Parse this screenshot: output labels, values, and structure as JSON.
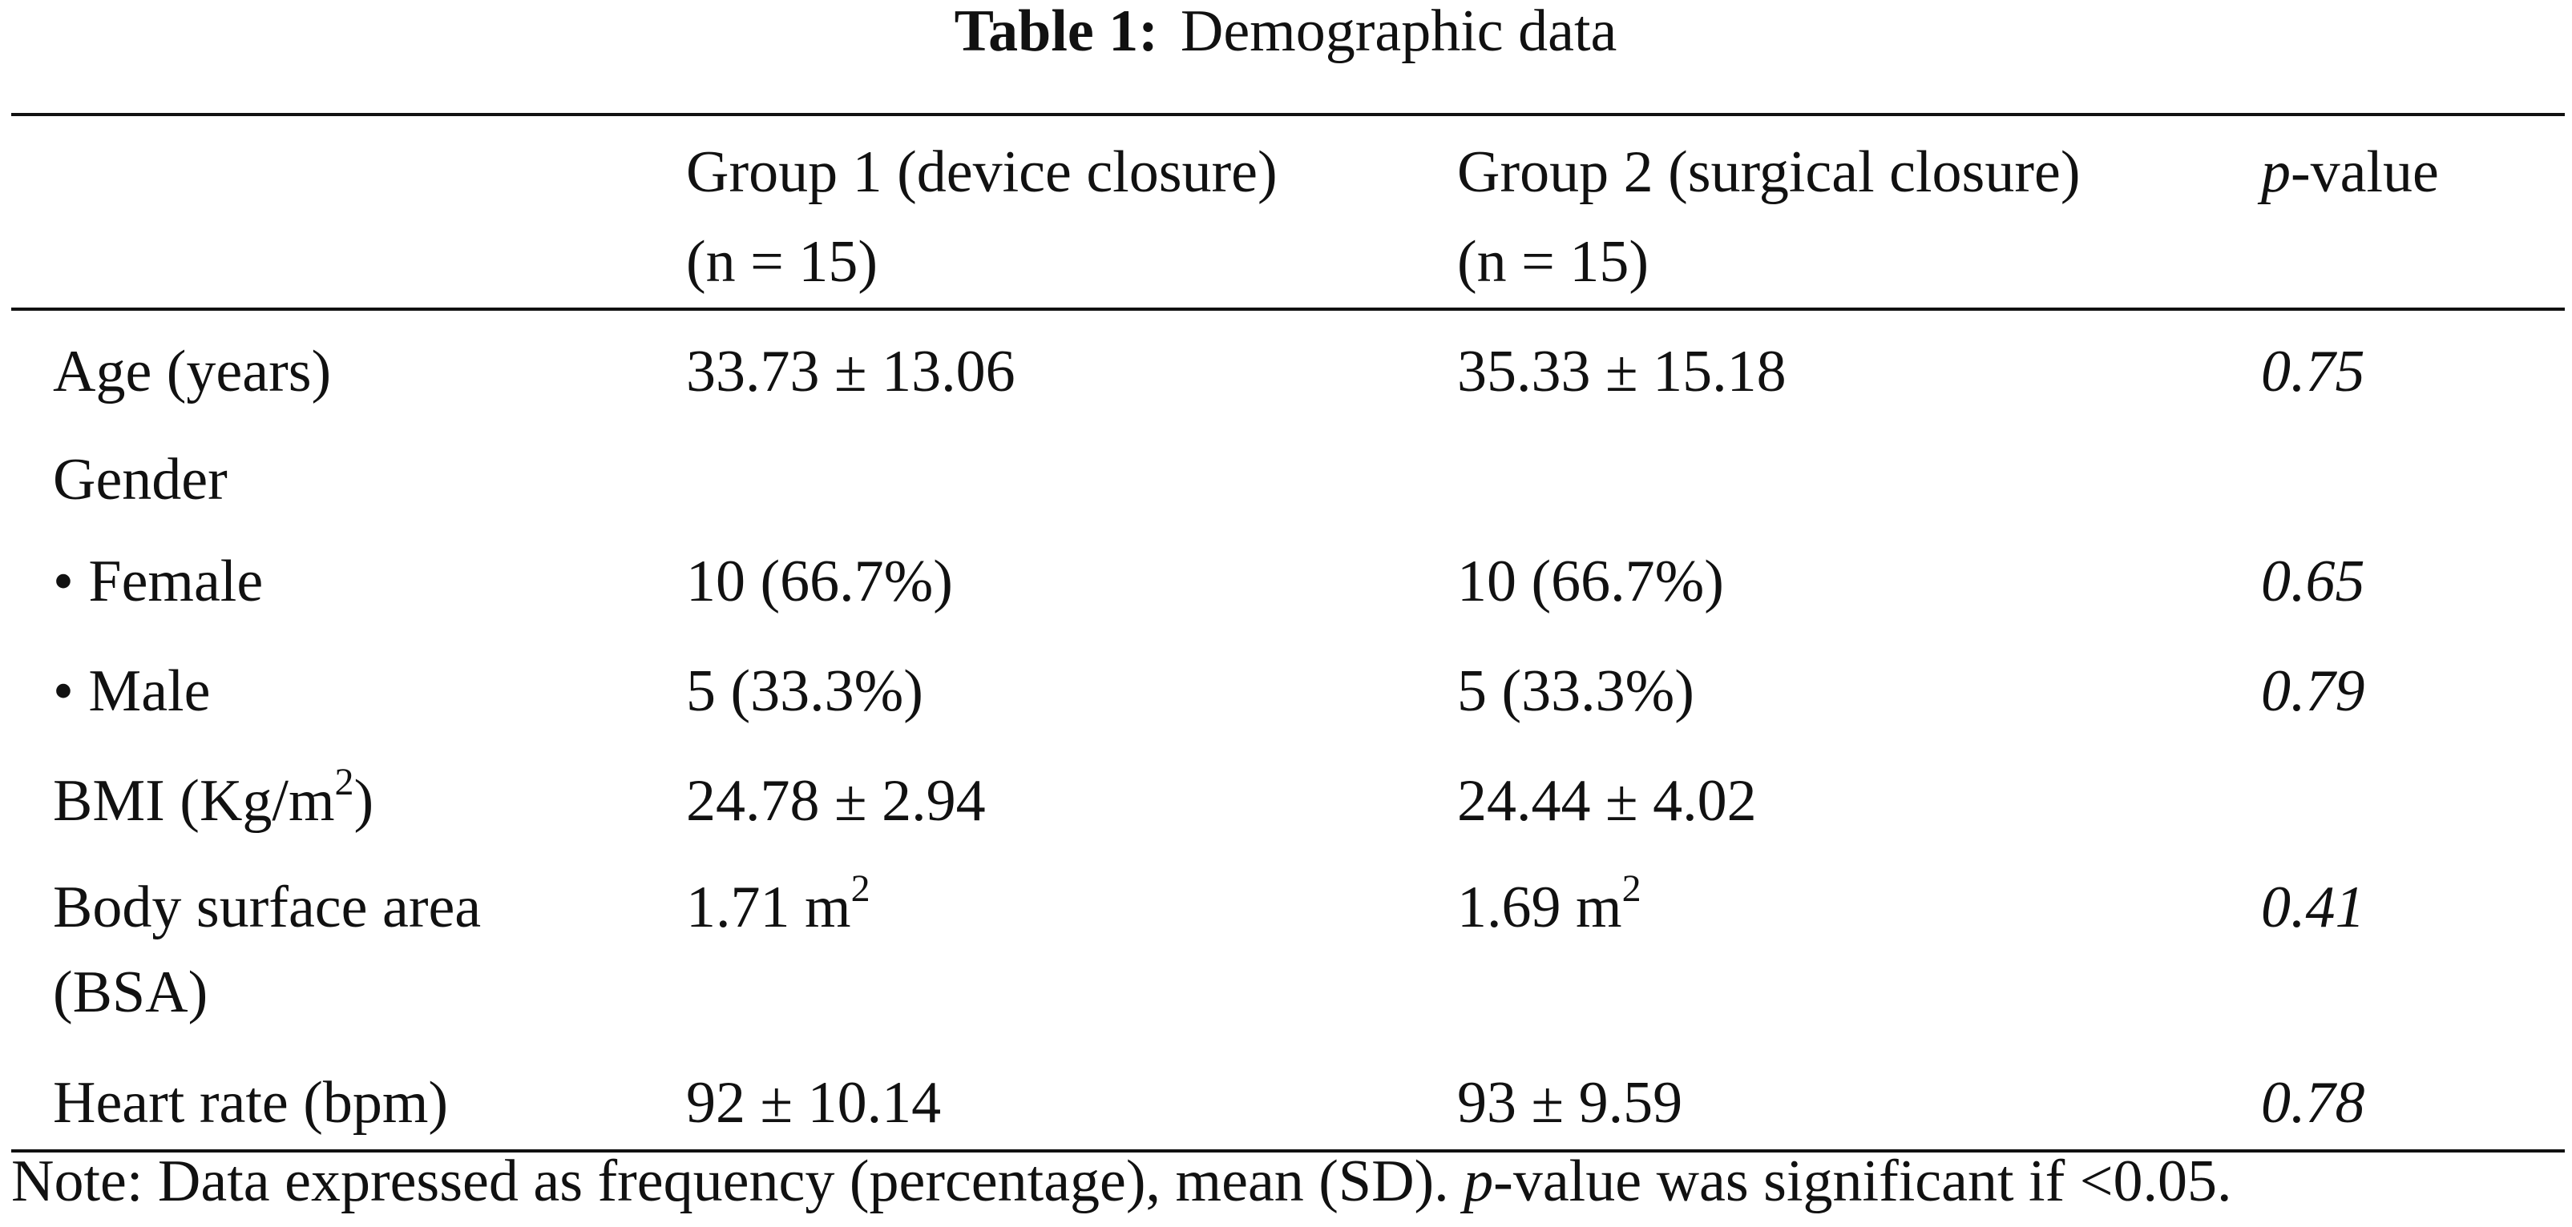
{
  "title": {
    "label": "Table 1:",
    "text": "Demographic data"
  },
  "table": {
    "header": [
      null,
      [
        "Group 1 (device closure)",
        "(n = 15)"
      ],
      [
        "Group 2 (surgical closure)",
        "(n = 15)"
      ],
      {
        "italic": "p",
        "text": "-value"
      }
    ],
    "rows": [
      [
        "Age (years)",
        "33.73 ± 13.06",
        "35.33 ± 15.18",
        "0.75"
      ],
      [
        "Gender",
        null,
        null,
        null
      ],
      [
        "• Female",
        "10 (66.7%)",
        "10 (66.7%)",
        "0.65"
      ],
      [
        "• Male",
        "5 (33.3%)",
        "5 (33.3%)",
        "0.79"
      ],
      [
        {
          "text": "BMI (Kg/m",
          "sup": "2",
          "after": ")"
        },
        "24.78 ± 2.94",
        "24.44 ± 4.02",
        null
      ],
      [
        [
          "Body surface area",
          "(BSA)"
        ],
        {
          "text": "1.71 m",
          "sup": "2"
        },
        {
          "text": "1.69 m",
          "sup": "2"
        },
        "0.41"
      ],
      [
        "Heart rate (bpm)",
        "92 ± 10.14",
        "93 ± 9.59",
        "0.78"
      ]
    ]
  },
  "note": {
    "text": "Note: Data expressed as frequency (percentage), mean (SD). ",
    "italic": "p",
    "after": "-value was significant if <0.05."
  }
}
